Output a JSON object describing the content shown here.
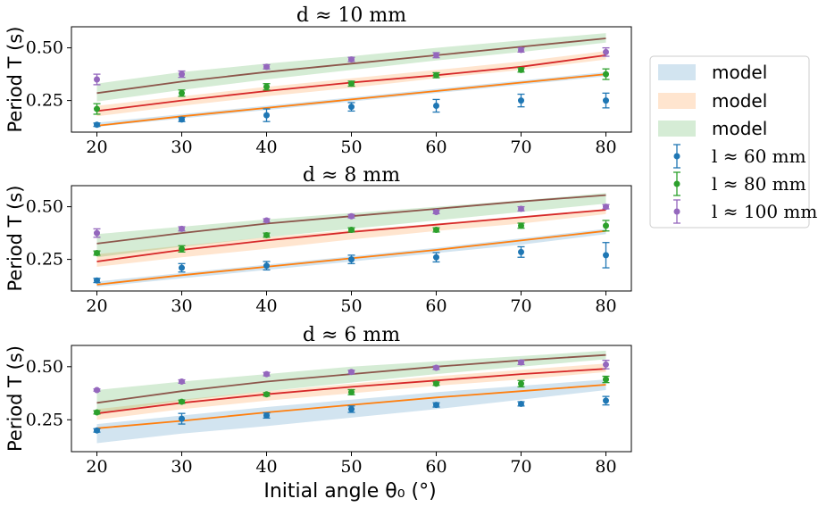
{
  "chart_data": {
    "type": "line",
    "shared_xlabel": "Initial angle θ₀ (°)",
    "shared_ylabel": "Period T (s)",
    "legend": {
      "placement": "right",
      "entries": [
        {
          "label": "model",
          "kind": "band",
          "color": "#1f77b4"
        },
        {
          "label": "model",
          "kind": "band",
          "color": "#ff7f0e"
        },
        {
          "label": "model",
          "kind": "band",
          "color": "#2ca02c"
        },
        {
          "label": "l ≈ 60 mm",
          "kind": "errorbar",
          "color": "#1f77b4"
        },
        {
          "label": "l ≈ 80 mm",
          "kind": "errorbar",
          "color": "#2ca02c"
        },
        {
          "label": "l ≈ 100 mm",
          "kind": "errorbar",
          "color": "#9467bd"
        }
      ]
    },
    "x_ticks": [
      20,
      30,
      40,
      50,
      60,
      70,
      80
    ],
    "y_ticks": [
      0.25,
      0.5
    ],
    "xlim": [
      17,
      83
    ],
    "ylim": [
      0.1,
      0.6
    ],
    "x": [
      20,
      30,
      40,
      50,
      60,
      70,
      80
    ],
    "panels": [
      {
        "title": "d ≈ 10 mm",
        "bands": [
          {
            "color": "#1f77b4",
            "lower": [
              0.125,
              0.165,
              0.205,
              0.245,
              0.285,
              0.325,
              0.365
            ],
            "upper": [
              0.145,
              0.185,
              0.225,
              0.265,
              0.305,
              0.345,
              0.385
            ]
          },
          {
            "color": "#ff7f0e",
            "lower": [
              0.175,
              0.225,
              0.27,
              0.31,
              0.355,
              0.395,
              0.445
            ],
            "upper": [
              0.225,
              0.27,
              0.315,
              0.355,
              0.395,
              0.435,
              0.485
            ]
          },
          {
            "color": "#2ca02c",
            "lower": [
              0.245,
              0.3,
              0.35,
              0.395,
              0.44,
              0.48,
              0.525
            ],
            "upper": [
              0.33,
              0.385,
              0.425,
              0.46,
              0.5,
              0.535,
              0.57
            ]
          }
        ],
        "lines": [
          {
            "color": "#ff7f0e",
            "values": [
              0.13,
              0.175,
              0.215,
              0.255,
              0.295,
              0.335,
              0.375
            ]
          },
          {
            "color": "#d62728",
            "values": [
              0.2,
              0.25,
              0.295,
              0.335,
              0.37,
              0.41,
              0.465
            ]
          },
          {
            "color": "#8c564b",
            "values": [
              0.285,
              0.34,
              0.385,
              0.425,
              0.465,
              0.505,
              0.545
            ]
          }
        ],
        "series": [
          {
            "name": "l ≈ 60 mm",
            "color": "#1f77b4",
            "values": [
              0.135,
              0.16,
              0.18,
              0.22,
              0.225,
              0.25,
              0.25
            ],
            "errors": [
              0.008,
              0.01,
              0.03,
              0.02,
              0.03,
              0.03,
              0.035
            ]
          },
          {
            "name": "l ≈ 80 mm",
            "color": "#2ca02c",
            "values": [
              0.21,
              0.285,
              0.315,
              0.33,
              0.37,
              0.395,
              0.375
            ],
            "errors": [
              0.025,
              0.015,
              0.015,
              0.012,
              0.012,
              0.01,
              0.025
            ]
          },
          {
            "name": "l ≈ 100 mm",
            "color": "#9467bd",
            "values": [
              0.35,
              0.375,
              0.41,
              0.445,
              0.465,
              0.49,
              0.48
            ],
            "errors": [
              0.025,
              0.015,
              0.01,
              0.01,
              0.012,
              0.01,
              0.02
            ]
          }
        ]
      },
      {
        "title": "d ≈ 8 mm",
        "bands": [
          {
            "color": "#1f77b4",
            "lower": [
              0.12,
              0.16,
              0.2,
              0.24,
              0.28,
              0.32,
              0.37
            ],
            "upper": [
              0.145,
              0.185,
              0.225,
              0.265,
              0.305,
              0.35,
              0.395
            ]
          },
          {
            "color": "#ff7f0e",
            "lower": [
              0.215,
              0.26,
              0.3,
              0.345,
              0.385,
              0.42,
              0.465
            ],
            "upper": [
              0.275,
              0.315,
              0.355,
              0.39,
              0.42,
              0.455,
              0.49
            ]
          },
          {
            "color": "#2ca02c",
            "lower": [
              0.26,
              0.31,
              0.355,
              0.395,
              0.435,
              0.475,
              0.515
            ],
            "upper": [
              0.37,
              0.405,
              0.44,
              0.47,
              0.5,
              0.53,
              0.565
            ]
          }
        ],
        "lines": [
          {
            "color": "#ff7f0e",
            "values": [
              0.13,
              0.175,
              0.215,
              0.255,
              0.295,
              0.34,
              0.385
            ]
          },
          {
            "color": "#d62728",
            "values": [
              0.24,
              0.295,
              0.34,
              0.38,
              0.415,
              0.45,
              0.485
            ]
          },
          {
            "color": "#8c564b",
            "values": [
              0.325,
              0.375,
              0.42,
              0.455,
              0.49,
              0.525,
              0.555
            ]
          }
        ],
        "series": [
          {
            "name": "l ≈ 60 mm",
            "color": "#1f77b4",
            "values": [
              0.15,
              0.21,
              0.22,
              0.25,
              0.26,
              0.285,
              0.27
            ],
            "errors": [
              0.01,
              0.02,
              0.02,
              0.02,
              0.022,
              0.025,
              0.06
            ]
          },
          {
            "name": "l ≈ 80 mm",
            "color": "#2ca02c",
            "values": [
              0.28,
              0.3,
              0.365,
              0.39,
              0.39,
              0.41,
              0.41
            ],
            "errors": [
              0.01,
              0.015,
              0.01,
              0.01,
              0.01,
              0.012,
              0.025
            ]
          },
          {
            "name": "l ≈ 100 mm",
            "color": "#9467bd",
            "values": [
              0.375,
              0.395,
              0.435,
              0.455,
              0.475,
              0.49,
              0.5
            ],
            "errors": [
              0.02,
              0.01,
              0.008,
              0.008,
              0.008,
              0.01,
              0.01
            ]
          }
        ]
      },
      {
        "title": "d ≈ 6 mm",
        "bands": [
          {
            "color": "#1f77b4",
            "lower": [
              0.14,
              0.185,
              0.22,
              0.26,
              0.3,
              0.345,
              0.39
            ],
            "upper": [
              0.23,
              0.27,
              0.31,
              0.345,
              0.38,
              0.41,
              0.44
            ]
          },
          {
            "color": "#ff7f0e",
            "lower": [
              0.25,
              0.3,
              0.34,
              0.375,
              0.41,
              0.44,
              0.475
            ],
            "upper": [
              0.3,
              0.345,
              0.385,
              0.42,
              0.455,
              0.485,
              0.515
            ]
          },
          {
            "color": "#2ca02c",
            "lower": [
              0.28,
              0.34,
              0.385,
              0.425,
              0.465,
              0.5,
              0.535
            ],
            "upper": [
              0.39,
              0.43,
              0.465,
              0.5,
              0.525,
              0.55,
              0.575
            ]
          }
        ],
        "lines": [
          {
            "color": "#ff7f0e",
            "values": [
              0.21,
              0.245,
              0.285,
              0.32,
              0.355,
              0.385,
              0.415
            ]
          },
          {
            "color": "#d62728",
            "values": [
              0.28,
              0.33,
              0.37,
              0.405,
              0.435,
              0.465,
              0.49
            ]
          },
          {
            "color": "#8c564b",
            "values": [
              0.33,
              0.385,
              0.43,
              0.465,
              0.5,
              0.53,
              0.555
            ]
          }
        ],
        "series": [
          {
            "name": "l ≈ 60 mm",
            "color": "#1f77b4",
            "values": [
              0.2,
              0.255,
              0.27,
              0.3,
              0.32,
              0.325,
              0.34
            ],
            "errors": [
              0.008,
              0.025,
              0.012,
              0.015,
              0.01,
              0.01,
              0.02
            ]
          },
          {
            "name": "l ≈ 80 mm",
            "color": "#2ca02c",
            "values": [
              0.285,
              0.335,
              0.37,
              0.38,
              0.42,
              0.42,
              0.44
            ],
            "errors": [
              0.008,
              0.008,
              0.008,
              0.012,
              0.008,
              0.015,
              0.015
            ]
          },
          {
            "name": "l ≈ 100 mm",
            "color": "#9467bd",
            "values": [
              0.39,
              0.43,
              0.465,
              0.475,
              0.495,
              0.52,
              0.51
            ],
            "errors": [
              0.005,
              0.008,
              0.008,
              0.008,
              0.008,
              0.01,
              0.02
            ]
          }
        ]
      }
    ]
  }
}
